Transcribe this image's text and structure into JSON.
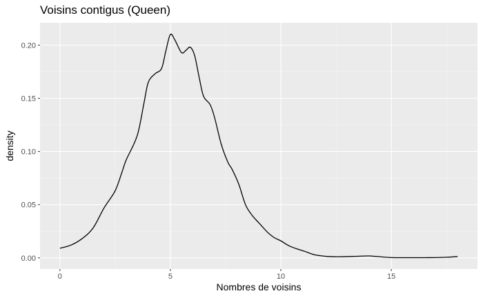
{
  "chart_data": {
    "type": "line",
    "title": "Voisins contigus (Queen)",
    "xlabel": "Nombres de voisins",
    "ylabel": "density",
    "xlim": [
      -0.9,
      18.9
    ],
    "ylim": [
      -0.0105,
      0.221
    ],
    "x_ticks": [
      {
        "value": 0,
        "label": "0"
      },
      {
        "value": 5,
        "label": "5"
      },
      {
        "value": 10,
        "label": "10"
      },
      {
        "value": 15,
        "label": "15"
      }
    ],
    "y_ticks": [
      {
        "value": 0.0,
        "label": "0.00"
      },
      {
        "value": 0.05,
        "label": "0.05"
      },
      {
        "value": 0.1,
        "label": "0.10"
      },
      {
        "value": 0.15,
        "label": "0.15"
      },
      {
        "value": 0.2,
        "label": "0.20"
      }
    ],
    "grid": true,
    "legend": "none",
    "colors": {
      "panel": "#ebebeb",
      "grid_major": "#ffffff",
      "line": "#000000"
    },
    "series": [
      {
        "x": [
          0,
          0.5,
          1.0,
          1.5,
          2.0,
          2.5,
          2.8,
          3.0,
          3.5,
          3.8,
          4.0,
          4.3,
          4.6,
          4.8,
          5.0,
          5.2,
          5.5,
          5.7,
          5.9,
          6.1,
          6.3,
          6.5,
          6.8,
          7.0,
          7.3,
          7.6,
          7.8,
          8.1,
          8.4,
          8.7,
          9.0,
          9.4,
          9.7,
          10.0,
          10.4,
          10.8,
          11.1,
          11.5,
          11.8,
          12.2,
          12.6,
          13.0,
          13.5,
          14.0,
          14.5,
          15.0,
          15.5,
          16.0,
          16.5,
          17.0,
          17.5,
          18.0
        ],
        "y": [
          0.009,
          0.012,
          0.018,
          0.028,
          0.047,
          0.063,
          0.08,
          0.092,
          0.115,
          0.145,
          0.165,
          0.173,
          0.178,
          0.195,
          0.21,
          0.205,
          0.193,
          0.195,
          0.198,
          0.19,
          0.17,
          0.152,
          0.144,
          0.132,
          0.107,
          0.09,
          0.083,
          0.069,
          0.05,
          0.04,
          0.033,
          0.024,
          0.019,
          0.016,
          0.011,
          0.008,
          0.006,
          0.003,
          0.002,
          0.0012,
          0.001,
          0.0012,
          0.0015,
          0.0018,
          0.001,
          0.0003,
          0.0002,
          0.0002,
          0.0002,
          0.0003,
          0.0006,
          0.0012
        ]
      }
    ]
  }
}
